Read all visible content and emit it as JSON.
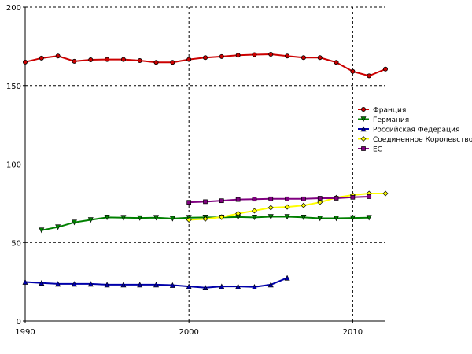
{
  "chart_data": {
    "type": "line",
    "x": [
      1990,
      1991,
      1992,
      1993,
      1994,
      1995,
      1996,
      1997,
      1998,
      1999,
      2000,
      2001,
      2002,
      2003,
      2004,
      2005,
      2006,
      2007,
      2008,
      2009,
      2010,
      2011,
      2012
    ],
    "xlim": [
      1990,
      2012
    ],
    "ylim": [
      0,
      200
    ],
    "xticks": [
      1990,
      2000,
      2010
    ],
    "yticks": [
      0,
      50,
      100,
      150,
      200
    ],
    "xtick_labels": [
      "1990",
      "2000",
      "2010"
    ],
    "ytick_labels": [
      "0",
      "50",
      "100",
      "150",
      "200"
    ],
    "grid": true,
    "legend_position": "right",
    "series": [
      {
        "name": "Франция",
        "color": "#cc0000",
        "marker": "circle",
        "values": [
          165.0,
          167.5,
          168.8,
          165.5,
          166.4,
          166.6,
          166.6,
          165.9,
          164.8,
          164.8,
          166.6,
          167.8,
          168.5,
          169.3,
          169.7,
          169.9,
          168.8,
          167.8,
          167.8,
          164.8,
          159.0,
          156.2,
          160.5
        ]
      },
      {
        "name": "Германия",
        "color": "#008000",
        "marker": "triangle-down",
        "values": [
          null,
          57.8,
          59.8,
          62.8,
          64.4,
          66.0,
          65.8,
          65.6,
          65.8,
          65.2,
          65.8,
          66.0,
          66.0,
          66.2,
          66.0,
          66.4,
          66.4,
          66.0,
          65.4,
          65.4,
          65.6,
          65.8,
          null
        ]
      },
      {
        "name": "Российская Федерация",
        "color": "#0000aa",
        "marker": "triangle-up",
        "values": [
          24.8,
          24.2,
          23.6,
          23.6,
          23.6,
          23.1,
          23.1,
          23.1,
          23.1,
          22.8,
          22.0,
          21.2,
          22.0,
          22.0,
          21.7,
          23.1,
          27.4,
          null,
          null,
          null,
          null,
          null,
          null
        ]
      },
      {
        "name": "Соединенное Королевство",
        "color": "#ffff00",
        "marker": "diamond",
        "values": [
          null,
          null,
          null,
          null,
          null,
          null,
          null,
          null,
          null,
          null,
          64.4,
          65.0,
          66.2,
          68.4,
          70.2,
          72.2,
          72.6,
          73.6,
          75.6,
          78.6,
          80.2,
          81.2,
          81.2
        ]
      },
      {
        "name": "ЕС",
        "color": "#800080",
        "marker": "square",
        "values": [
          null,
          null,
          null,
          null,
          null,
          null,
          null,
          null,
          null,
          null,
          75.6,
          76.0,
          76.6,
          77.4,
          77.6,
          77.8,
          77.8,
          77.8,
          78.2,
          78.2,
          78.8,
          79.2,
          null
        ]
      }
    ]
  }
}
